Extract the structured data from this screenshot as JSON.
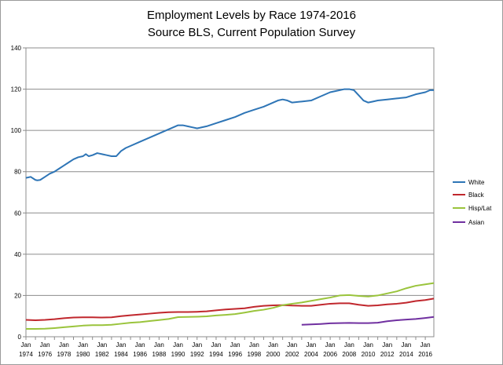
{
  "chart_data": {
    "type": "line",
    "title": "Employment Levels by Race 1974-2016",
    "subtitle": "Source BLS, Current Population Survey",
    "xlabel": "",
    "ylabel": "",
    "xlim": [
      1974,
      2016.9
    ],
    "ylim": [
      0,
      140
    ],
    "y_ticks": [
      0,
      20,
      40,
      60,
      80,
      100,
      120,
      140
    ],
    "x_tick_top": "Jan",
    "x_tick_years": [
      "1974",
      "1976",
      "1978",
      "1980",
      "1982",
      "1984",
      "1986",
      "1988",
      "1990",
      "1992",
      "1994",
      "1996",
      "1998",
      "2000",
      "2002",
      "2004",
      "2006",
      "2008",
      "2010",
      "2012",
      "2014",
      "2016"
    ],
    "grid": "horizontal",
    "legend_position": "right",
    "series": [
      {
        "name": "White",
        "color": "#2e75b6",
        "x": [
          1974,
          1974.5,
          1975,
          1975.2,
          1975.5,
          1976,
          1976.5,
          1977,
          1977.5,
          1978,
          1978.5,
          1979,
          1979.5,
          1980,
          1980.3,
          1980.6,
          1981,
          1981.5,
          1982,
          1982.5,
          1983,
          1983.5,
          1984,
          1984.5,
          1985,
          1986,
          1987,
          1988,
          1989,
          1990,
          1990.5,
          1991,
          1991.5,
          1992,
          1993,
          1994,
          1995,
          1996,
          1997,
          1998,
          1999,
          2000,
          2000.5,
          2001,
          2001.5,
          2002,
          2003,
          2004,
          2005,
          2006,
          2007,
          2007.5,
          2008,
          2008.5,
          2009,
          2009.5,
          2010,
          2010.5,
          2011,
          2012,
          2013,
          2014,
          2015,
          2016,
          2016.5,
          2016.9
        ],
        "values": [
          77,
          77.5,
          76,
          75.8,
          76,
          77.5,
          79,
          80,
          81.5,
          83,
          84.5,
          86,
          87,
          87.5,
          88.5,
          87.5,
          88,
          89,
          88.5,
          88,
          87.5,
          87.5,
          90,
          91.5,
          92.5,
          94.5,
          96.5,
          98.5,
          100.5,
          102.5,
          102.5,
          102,
          101.5,
          101,
          102,
          103.5,
          105,
          106.5,
          108.5,
          110,
          111.5,
          113.5,
          114.5,
          115,
          114.5,
          113.5,
          114,
          114.5,
          116.5,
          118.5,
          119.5,
          120,
          120,
          119.5,
          117,
          114.5,
          113.5,
          114,
          114.5,
          115,
          115.5,
          116,
          117.5,
          118.5,
          119.5,
          119.5
        ]
      },
      {
        "name": "Black",
        "color": "#c0272d",
        "x": [
          1974,
          1975,
          1976,
          1977,
          1978,
          1979,
          1980,
          1981,
          1982,
          1983,
          1984,
          1985,
          1986,
          1987,
          1988,
          1989,
          1990,
          1991,
          1992,
          1993,
          1994,
          1995,
          1996,
          1997,
          1998,
          1999,
          2000,
          2001,
          2002,
          2003,
          2004,
          2005,
          2006,
          2007,
          2008,
          2009,
          2010,
          2011,
          2012,
          2013,
          2014,
          2015,
          2016,
          2016.9
        ],
        "values": [
          8.2,
          8,
          8.2,
          8.5,
          9,
          9.3,
          9.4,
          9.4,
          9.3,
          9.4,
          10,
          10.4,
          10.8,
          11.2,
          11.6,
          11.9,
          12,
          12,
          12.1,
          12.3,
          12.8,
          13.2,
          13.5,
          13.8,
          14.5,
          15,
          15.2,
          15.3,
          15.1,
          15,
          15,
          15.5,
          16,
          16.2,
          16.2,
          15.5,
          15,
          15.2,
          15.7,
          16,
          16.5,
          17.3,
          17.8,
          18.5
        ]
      },
      {
        "name": "Hisp/Lat",
        "color": "#9ac43c",
        "x": [
          1974,
          1975,
          1976,
          1977,
          1978,
          1979,
          1980,
          1981,
          1982,
          1983,
          1984,
          1985,
          1986,
          1987,
          1988,
          1989,
          1990,
          1991,
          1992,
          1993,
          1994,
          1995,
          1996,
          1997,
          1998,
          1999,
          2000,
          2001,
          2002,
          2003,
          2004,
          2005,
          2006,
          2007,
          2008,
          2009,
          2010,
          2011,
          2012,
          2013,
          2014,
          2015,
          2016,
          2016.9
        ],
        "values": [
          3.8,
          3.8,
          3.9,
          4.2,
          4.6,
          5,
          5.4,
          5.6,
          5.6,
          5.8,
          6.3,
          6.8,
          7.1,
          7.6,
          8.1,
          8.6,
          9.5,
          9.6,
          9.7,
          9.9,
          10.3,
          10.6,
          11,
          11.7,
          12.5,
          13.1,
          14,
          15.3,
          16,
          16.6,
          17.4,
          18.2,
          19,
          20,
          20.2,
          19.8,
          19.5,
          20,
          21,
          22,
          23.5,
          24.7,
          25.4,
          26
        ]
      },
      {
        "name": "Asian",
        "color": "#7030a0",
        "x": [
          2003,
          2004,
          2005,
          2006,
          2007,
          2008,
          2009,
          2010,
          2011,
          2012,
          2013,
          2014,
          2015,
          2016,
          2016.9
        ],
        "values": [
          5.8,
          6,
          6.2,
          6.5,
          6.6,
          6.7,
          6.6,
          6.6,
          6.8,
          7.5,
          8,
          8.3,
          8.6,
          9.1,
          9.6
        ]
      }
    ]
  }
}
